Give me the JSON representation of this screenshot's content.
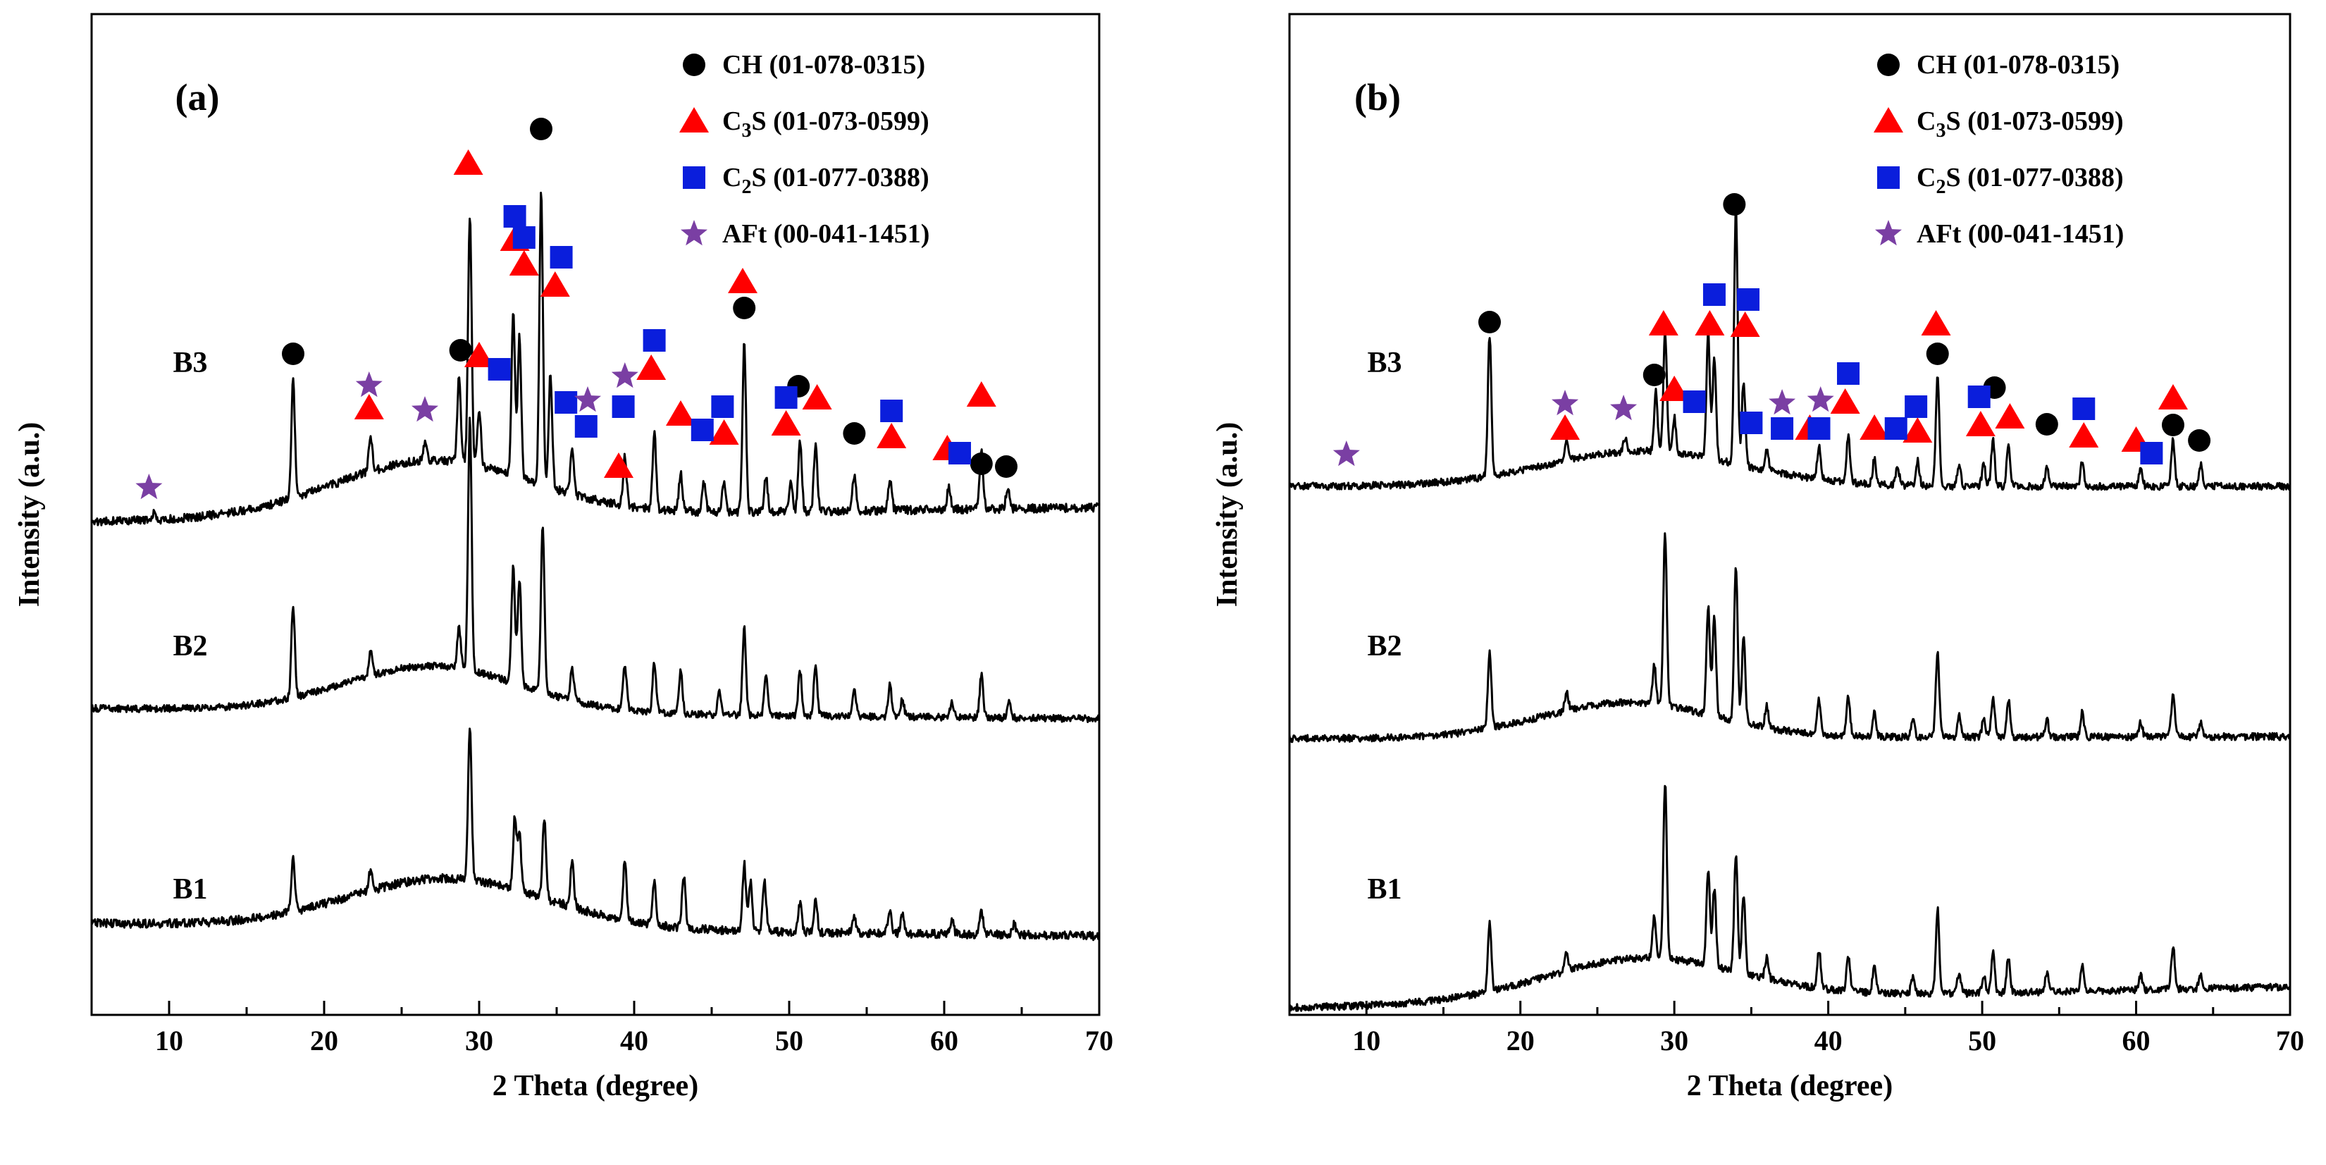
{
  "figure": {
    "x_title": "2 Theta (degree)",
    "y_title": "Intensity (a.u.)",
    "legend": [
      {
        "id": "CH",
        "label_main": "CH (01-078-0315)",
        "marker": "circle",
        "color": "#000000"
      },
      {
        "id": "C3S",
        "label_main": "C",
        "label_sub": "3",
        "label_rest": "S (01-073-0599)",
        "label": "C3S (01-073-0599)",
        "marker": "triangle",
        "color": "#ff0000"
      },
      {
        "id": "C2S",
        "label_main": "C",
        "label_sub": "2",
        "label_rest": "S (01-077-0388)",
        "label": "C2S (01-077-0388)",
        "marker": "square",
        "color": "#0a1edc"
      },
      {
        "id": "AFt",
        "label_main": "AFt (00-041-1451)",
        "marker": "star",
        "color": "#7a3fa3"
      }
    ]
  },
  "chart_data": [
    {
      "type": "line",
      "panel": "(a)",
      "xlabel": "2 Theta (degree)",
      "ylabel": "Intensity (a.u.)",
      "xlim": [
        5,
        70
      ],
      "xticks": [
        10,
        20,
        30,
        40,
        50,
        60,
        70
      ],
      "yticks": "none",
      "series": [
        {
          "name": "B1",
          "baseline": [
            1310,
            1328
          ],
          "noise": 6,
          "hump": {
            "center": 28,
            "width": 9,
            "height": 70
          },
          "peaks": [
            [
              18.0,
              75
            ],
            [
              23.0,
              30
            ],
            [
              29.4,
              215
            ],
            [
              32.3,
              100
            ],
            [
              32.6,
              80
            ],
            [
              34.2,
              115
            ],
            [
              36.0,
              65
            ],
            [
              39.4,
              85
            ],
            [
              41.3,
              60
            ],
            [
              43.2,
              75
            ],
            [
              47.1,
              95
            ],
            [
              47.5,
              70
            ],
            [
              48.4,
              75
            ],
            [
              50.7,
              40
            ],
            [
              51.7,
              45
            ],
            [
              54.2,
              25
            ],
            [
              56.5,
              30
            ],
            [
              57.3,
              25
            ],
            [
              60.5,
              20
            ],
            [
              62.4,
              30
            ],
            [
              64.5,
              15
            ]
          ]
        },
        {
          "name": "B2",
          "baseline": [
            1005,
            1020
          ],
          "noise": 5,
          "hump": {
            "center": 27,
            "width": 8,
            "height": 65
          },
          "peaks": [
            [
              18.0,
              130
            ],
            [
              23.0,
              35
            ],
            [
              28.7,
              60
            ],
            [
              29.4,
              355
            ],
            [
              32.2,
              165
            ],
            [
              32.6,
              150
            ],
            [
              34.1,
              240
            ],
            [
              36.0,
              45
            ],
            [
              39.4,
              65
            ],
            [
              41.3,
              70
            ],
            [
              43.0,
              60
            ],
            [
              45.5,
              35
            ],
            [
              47.1,
              125
            ],
            [
              48.5,
              55
            ],
            [
              50.7,
              65
            ],
            [
              51.7,
              70
            ],
            [
              54.2,
              35
            ],
            [
              56.5,
              45
            ],
            [
              57.3,
              25
            ],
            [
              60.5,
              20
            ],
            [
              62.4,
              60
            ],
            [
              64.2,
              25
            ]
          ]
        },
        {
          "name": "B3",
          "baseline": [
            740,
            720
          ],
          "noise": 6,
          "hump": {
            "center": 27,
            "width": 9,
            "height": 80
          },
          "peaks": [
            [
              9.0,
              8
            ],
            [
              18.0,
              165
            ],
            [
              23.0,
              50
            ],
            [
              26.5,
              25
            ],
            [
              28.7,
              120
            ],
            [
              29.4,
              350
            ],
            [
              30.0,
              80
            ],
            [
              32.2,
              230
            ],
            [
              32.6,
              200
            ],
            [
              34.0,
              415
            ],
            [
              34.6,
              160
            ],
            [
              36.0,
              60
            ],
            [
              39.4,
              70
            ],
            [
              41.3,
              110
            ],
            [
              43.0,
              55
            ],
            [
              44.5,
              40
            ],
            [
              45.8,
              45
            ],
            [
              47.1,
              240
            ],
            [
              48.5,
              50
            ],
            [
              50.1,
              45
            ],
            [
              50.7,
              100
            ],
            [
              51.7,
              95
            ],
            [
              54.2,
              50
            ],
            [
              56.5,
              45
            ],
            [
              60.3,
              30
            ],
            [
              62.4,
              80
            ],
            [
              64.1,
              30
            ]
          ]
        }
      ],
      "series_labels": [
        "B3",
        "B2",
        "B1"
      ],
      "markers": {
        "CH": [
          [
            18.0,
            502
          ],
          [
            28.8,
            497
          ],
          [
            34.0,
            183
          ],
          [
            47.1,
            437
          ],
          [
            50.6,
            548
          ],
          [
            54.2,
            615
          ],
          [
            62.4,
            658
          ],
          [
            64.0,
            662
          ]
        ],
        "C3S": [
          [
            22.9,
            579
          ],
          [
            29.3,
            232
          ],
          [
            30.0,
            505
          ],
          [
            32.3,
            340
          ],
          [
            32.9,
            375
          ],
          [
            34.9,
            405
          ],
          [
            39.0,
            662
          ],
          [
            41.1,
            523
          ],
          [
            43.0,
            588
          ],
          [
            45.8,
            615
          ],
          [
            47.0,
            400
          ],
          [
            49.8,
            602
          ],
          [
            51.8,
            565
          ],
          [
            56.6,
            620
          ],
          [
            60.2,
            637
          ],
          [
            62.4,
            561
          ]
        ],
        "C2S": [
          [
            31.3,
            524
          ],
          [
            32.3,
            307
          ],
          [
            32.9,
            337
          ],
          [
            35.3,
            365
          ],
          [
            35.6,
            571
          ],
          [
            36.9,
            605
          ],
          [
            39.3,
            577
          ],
          [
            41.3,
            483
          ],
          [
            44.4,
            610
          ],
          [
            45.7,
            577
          ],
          [
            49.8,
            564
          ],
          [
            56.6,
            583
          ],
          [
            61.0,
            643
          ]
        ],
        "AFt": [
          [
            8.7,
            692
          ],
          [
            22.9,
            547
          ],
          [
            26.5,
            582
          ],
          [
            37.0,
            568
          ],
          [
            39.4,
            534
          ]
        ]
      }
    },
    {
      "type": "line",
      "panel": "(b)",
      "xlabel": "2 Theta (degree)",
      "ylabel": "Intensity (a.u.)",
      "xlim": [
        5,
        70
      ],
      "xticks": [
        10,
        20,
        30,
        40,
        50,
        60,
        70
      ],
      "yticks": "none",
      "series": [
        {
          "name": "B1",
          "baseline": [
            1430,
            1400
          ],
          "noise": 5,
          "hump": {
            "center": 28,
            "width": 9,
            "height": 60
          },
          "peaks": [
            [
              18.0,
              95
            ],
            [
              23.0,
              25
            ],
            [
              28.7,
              60
            ],
            [
              29.4,
              250
            ],
            [
              32.2,
              135
            ],
            [
              32.6,
              110
            ],
            [
              34.0,
              165
            ],
            [
              34.5,
              110
            ],
            [
              36.0,
              30
            ],
            [
              39.4,
              55
            ],
            [
              41.3,
              50
            ],
            [
              43.0,
              40
            ],
            [
              45.5,
              25
            ],
            [
              47.1,
              120
            ],
            [
              48.5,
              30
            ],
            [
              50.1,
              25
            ],
            [
              50.7,
              60
            ],
            [
              51.7,
              50
            ],
            [
              54.2,
              25
            ],
            [
              56.5,
              35
            ],
            [
              60.3,
              20
            ],
            [
              62.4,
              60
            ],
            [
              64.2,
              20
            ]
          ]
        },
        {
          "name": "B2",
          "baseline": [
            1048,
            1045
          ],
          "noise": 5,
          "hump": {
            "center": 27,
            "width": 8,
            "height": 50
          },
          "peaks": [
            [
              18.0,
              110
            ],
            [
              23.0,
              25
            ],
            [
              28.7,
              55
            ],
            [
              29.4,
              245
            ],
            [
              32.2,
              155
            ],
            [
              32.6,
              140
            ],
            [
              34.0,
              220
            ],
            [
              34.5,
              120
            ],
            [
              36.0,
              30
            ],
            [
              39.4,
              50
            ],
            [
              41.3,
              55
            ],
            [
              43.0,
              35
            ],
            [
              45.5,
              25
            ],
            [
              47.1,
              120
            ],
            [
              48.5,
              30
            ],
            [
              50.1,
              25
            ],
            [
              50.7,
              55
            ],
            [
              51.7,
              55
            ],
            [
              54.2,
              25
            ],
            [
              56.5,
              35
            ],
            [
              60.3,
              20
            ],
            [
              62.4,
              60
            ],
            [
              64.2,
              20
            ]
          ]
        },
        {
          "name": "B3",
          "baseline": [
            690,
            690
          ],
          "noise": 5,
          "hump": {
            "center": 28,
            "width": 9,
            "height": 50
          },
          "peaks": [
            [
              18.0,
              200
            ],
            [
              23.0,
              30
            ],
            [
              26.8,
              20
            ],
            [
              28.8,
              85
            ],
            [
              29.4,
              170
            ],
            [
              30.0,
              50
            ],
            [
              32.2,
              175
            ],
            [
              32.6,
              145
            ],
            [
              34.0,
              360
            ],
            [
              34.5,
              120
            ],
            [
              36.0,
              30
            ],
            [
              39.4,
              45
            ],
            [
              41.3,
              65
            ],
            [
              43.0,
              35
            ],
            [
              44.5,
              25
            ],
            [
              45.8,
              35
            ],
            [
              47.1,
              155
            ],
            [
              48.5,
              30
            ],
            [
              50.1,
              30
            ],
            [
              50.7,
              65
            ],
            [
              51.7,
              55
            ],
            [
              54.2,
              25
            ],
            [
              56.5,
              35
            ],
            [
              60.3,
              25
            ],
            [
              62.4,
              65
            ],
            [
              64.2,
              30
            ]
          ]
        }
      ],
      "series_labels": [
        "B3",
        "B2",
        "B1"
      ],
      "markers": {
        "CH": [
          [
            18.0,
            457
          ],
          [
            28.7,
            532
          ],
          [
            33.9,
            290
          ],
          [
            47.1,
            502
          ],
          [
            50.8,
            550
          ],
          [
            54.2,
            602
          ],
          [
            62.4,
            603
          ],
          [
            64.1,
            625
          ]
        ],
        "C3S": [
          [
            22.9,
            608
          ],
          [
            29.3,
            460
          ],
          [
            30.0,
            553
          ],
          [
            32.3,
            460
          ],
          [
            34.6,
            462
          ],
          [
            38.8,
            608
          ],
          [
            41.1,
            571
          ],
          [
            43.0,
            608
          ],
          [
            45.8,
            612
          ],
          [
            47.0,
            460
          ],
          [
            49.9,
            603
          ],
          [
            51.8,
            592
          ],
          [
            56.6,
            619
          ],
          [
            60.0,
            625
          ],
          [
            62.4,
            565
          ]
        ],
        "C2S": [
          [
            31.3,
            570
          ],
          [
            32.6,
            418
          ],
          [
            34.8,
            425
          ],
          [
            35.0,
            600
          ],
          [
            37.0,
            608
          ],
          [
            39.4,
            608
          ],
          [
            41.3,
            530
          ],
          [
            44.4,
            608
          ],
          [
            45.7,
            577
          ],
          [
            49.8,
            563
          ],
          [
            56.6,
            580
          ],
          [
            61.0,
            643
          ]
        ],
        "AFt": [
          [
            8.7,
            645
          ],
          [
            22.9,
            573
          ],
          [
            26.7,
            580
          ],
          [
            37.0,
            572
          ],
          [
            39.5,
            568
          ]
        ]
      }
    }
  ]
}
